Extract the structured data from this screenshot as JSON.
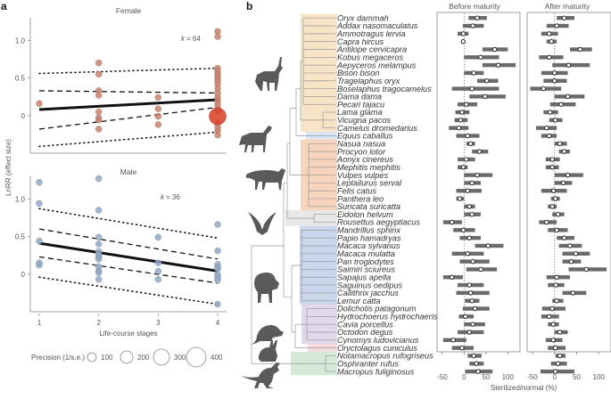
{
  "panel_labels": {
    "a": "a",
    "b": "b"
  },
  "chart_data": [
    {
      "type": "scatter",
      "id": "female",
      "title": "Female",
      "annotation": "k = 64",
      "k_label": "k",
      "k_value": "= 64",
      "xlabel": "Life-course stages",
      "ylabel": "LnRR (effect size)",
      "xlim": [
        0.85,
        4.15
      ],
      "ylim": [
        -0.5,
        1.3
      ],
      "yticks": [
        0,
        0.5,
        1.0
      ],
      "ytick_labels": [
        "0",
        "0.5",
        "1.0"
      ],
      "point_color": "#c9806a",
      "big_point_color": "#d9482f",
      "points": [
        {
          "x": 1,
          "y": 0.16
        },
        {
          "x": 2,
          "y": 0.7
        },
        {
          "x": 2,
          "y": 0.55
        },
        {
          "x": 2,
          "y": 0.33
        },
        {
          "x": 2,
          "y": 0.27
        },
        {
          "x": 2,
          "y": 0.05
        },
        {
          "x": 2,
          "y": -0.03
        },
        {
          "x": 2,
          "y": -0.06
        },
        {
          "x": 2,
          "y": -0.18
        },
        {
          "x": 3,
          "y": 0.24
        },
        {
          "x": 3,
          "y": 0.09
        },
        {
          "x": 3,
          "y": -0.01
        },
        {
          "x": 3,
          "y": -0.12
        },
        {
          "x": 4,
          "y": 1.12
        },
        {
          "x": 4,
          "y": 1.05
        },
        {
          "x": 4,
          "y": 0.63
        },
        {
          "x": 4,
          "y": 0.59
        },
        {
          "x": 4,
          "y": 0.55
        },
        {
          "x": 4,
          "y": 0.51
        },
        {
          "x": 4,
          "y": 0.47
        },
        {
          "x": 4,
          "y": 0.42
        },
        {
          "x": 4,
          "y": 0.36
        },
        {
          "x": 4,
          "y": 0.3
        },
        {
          "x": 4,
          "y": 0.24
        },
        {
          "x": 4,
          "y": 0.2
        },
        {
          "x": 4,
          "y": 0.15
        },
        {
          "x": 4,
          "y": 0.1
        },
        {
          "x": 4,
          "y": 0.06
        },
        {
          "x": 4,
          "y": -0.1
        },
        {
          "x": 4,
          "y": -0.15
        },
        {
          "x": 4,
          "y": -0.2
        },
        {
          "x": 4,
          "y": -0.26
        }
      ],
      "big_point": {
        "x": 4,
        "y": -0.01,
        "precision": 400
      },
      "fit": {
        "start": 0.08,
        "end": 0.21
      },
      "ci": {
        "lower_start": -0.18,
        "lower_end": 0.11,
        "upper_start": 0.33,
        "upper_end": 0.3
      },
      "pi": {
        "lower_start": -0.41,
        "lower_end": -0.22,
        "upper_start": 0.56,
        "upper_end": 0.63
      }
    },
    {
      "type": "scatter",
      "id": "male",
      "title": "Male",
      "annotation": "k = 36",
      "k_label": "k",
      "k_value": "= 36",
      "xlabel": "Life-course stages",
      "ylabel": "LnRR (effect size)",
      "xticks": [
        1,
        2,
        3,
        4
      ],
      "xtick_labels": [
        "1",
        "2",
        "3",
        "4"
      ],
      "xlim": [
        0.85,
        4.15
      ],
      "ylim": [
        -0.5,
        1.3
      ],
      "yticks": [
        0,
        0.5,
        1.0
      ],
      "ytick_labels": [
        "0",
        "0.5",
        "1.0"
      ],
      "point_color": "#8fa8c8",
      "points": [
        {
          "x": 1,
          "y": 1.22
        },
        {
          "x": 1,
          "y": 0.94
        },
        {
          "x": 1,
          "y": 0.44
        },
        {
          "x": 1,
          "y": 0.15
        },
        {
          "x": 1,
          "y": 0.12
        },
        {
          "x": 2,
          "y": 1.27
        },
        {
          "x": 2,
          "y": 0.85
        },
        {
          "x": 2,
          "y": 0.49
        },
        {
          "x": 2,
          "y": 0.4
        },
        {
          "x": 2,
          "y": 0.3
        },
        {
          "x": 2,
          "y": 0.25
        },
        {
          "x": 2,
          "y": 0.22
        },
        {
          "x": 2,
          "y": 0.2
        },
        {
          "x": 2,
          "y": 0.1
        },
        {
          "x": 2,
          "y": 0.04
        },
        {
          "x": 2,
          "y": 0.02
        },
        {
          "x": 2,
          "y": -0.07
        },
        {
          "x": 3,
          "y": 0.49
        },
        {
          "x": 3,
          "y": 0.15
        },
        {
          "x": 3,
          "y": 0.04
        },
        {
          "x": 3,
          "y": -0.07
        },
        {
          "x": 4,
          "y": 0.66
        },
        {
          "x": 4,
          "y": 0.31
        },
        {
          "x": 4,
          "y": 0.13
        },
        {
          "x": 4,
          "y": 0.09
        },
        {
          "x": 4,
          "y": 0.07
        },
        {
          "x": 4,
          "y": -0.01
        },
        {
          "x": 4,
          "y": -0.04
        },
        {
          "x": 4,
          "y": -0.08
        },
        {
          "x": 4,
          "y": -0.4
        }
      ],
      "fit": {
        "start": 0.41,
        "end": 0.04
      },
      "ci": {
        "lower_start": 0.23,
        "lower_end": -0.12,
        "upper_start": 0.6,
        "upper_end": 0.2
      },
      "pi": {
        "lower_start": -0.04,
        "lower_end": -0.4,
        "upper_start": 0.87,
        "upper_end": 0.48
      }
    },
    {
      "type": "forest",
      "id": "maturity",
      "xlabel": "Sterilized/normal (%)",
      "xlim": [
        -62,
        128
      ],
      "xticks": [
        -50,
        0,
        50,
        100
      ],
      "xtick_labels": [
        "-50",
        "0",
        "50",
        "100"
      ],
      "panels": [
        "Before maturity",
        "After maturity"
      ],
      "bar_color": "#6b6b6b",
      "species": [
        {
          "name": "Oryx dammah",
          "before": [
            30,
            10,
            52
          ],
          "after": [
            22,
            5,
            45
          ]
        },
        {
          "name": "Addax nasomaculatus",
          "before": [
            20,
            -3,
            45
          ],
          "after": [
            5,
            -18,
            32
          ]
        },
        {
          "name": "Ammotragus lervia",
          "before": [
            -2,
            -15,
            10
          ],
          "after": [
            -12,
            -30,
            8
          ]
        },
        {
          "name": "Capra hircus",
          "before": [
            -2,
            -6,
            2
          ],
          "after": [
            -7,
            -18,
            5
          ]
        },
        {
          "name": "Antilope cervicapra",
          "before": [
            70,
            42,
            100
          ],
          "after": [
            58,
            35,
            85
          ]
        },
        {
          "name": "Kobus megaceros",
          "before": [
            38,
            0,
            80
          ],
          "after": [
            -12,
            -35,
            20
          ]
        },
        {
          "name": "Aepyceros melampus",
          "before": [
            78,
            42,
            118
          ],
          "after": [
            32,
            -5,
            80
          ]
        },
        {
          "name": "Bison bison",
          "before": [
            22,
            0,
            45
          ],
          "after": [
            0,
            -30,
            30
          ]
        },
        {
          "name": "Tragelaphus oryx",
          "before": [
            52,
            30,
            78
          ],
          "after": [
            0,
            -25,
            28
          ]
        },
        {
          "name": "Boselaphus tragocamelus",
          "before": [
            18,
            -28,
            80
          ],
          "after": [
            -25,
            -55,
            15
          ]
        },
        {
          "name": "Dama dama",
          "before": [
            48,
            12,
            95
          ],
          "after": [
            30,
            0,
            68
          ]
        },
        {
          "name": "Pecari tajacu",
          "before": [
            5,
            -15,
            30
          ],
          "after": [
            15,
            -10,
            48
          ]
        },
        {
          "name": "Lama glama",
          "before": [
            -5,
            -20,
            12
          ],
          "after": [
            -10,
            -25,
            8
          ]
        },
        {
          "name": "Vicugna pacos",
          "before": [
            -8,
            -22,
            8
          ],
          "after": [
            2,
            -12,
            18
          ]
        },
        {
          "name": "Camelus dromedarius",
          "before": [
            -12,
            -35,
            10
          ],
          "after": [
            -18,
            -42,
            5
          ]
        },
        {
          "name": "Equus caballus",
          "before": [
            8,
            -18,
            35
          ],
          "after": [
            -12,
            -30,
            5
          ]
        },
        {
          "name": "Nasua nasua",
          "before": [
            15,
            5,
            25
          ],
          "after": [
            12,
            0,
            28
          ]
        },
        {
          "name": "Procyon lotor",
          "before": [
            35,
            18,
            55
          ],
          "after": [
            22,
            10,
            35
          ]
        },
        {
          "name": "Aonyx cinereus",
          "before": [
            5,
            -15,
            25
          ],
          "after": [
            -5,
            -20,
            12
          ]
        },
        {
          "name": "Mephitis mephitis",
          "before": [
            -2,
            -15,
            8
          ],
          "after": [
            -5,
            -20,
            10
          ]
        },
        {
          "name": "Vulpes vulpes",
          "before": [
            30,
            0,
            65
          ],
          "after": [
            30,
            0,
            65
          ]
        },
        {
          "name": "Leptailurus serval",
          "before": [
            18,
            0,
            38
          ],
          "after": [
            20,
            0,
            40
          ]
        },
        {
          "name": "Felis catus",
          "before": [
            8,
            -18,
            40
          ],
          "after": [
            -2,
            -30,
            28
          ]
        },
        {
          "name": "Panthera leo",
          "before": [
            -10,
            -18,
            0
          ],
          "after": [
            2,
            -8,
            12
          ]
        },
        {
          "name": "Suricata suricatta",
          "before": [
            12,
            0,
            25
          ],
          "after": [
            -5,
            -15,
            5
          ]
        },
        {
          "name": "Eidolon helvum",
          "before": [
            18,
            0,
            38
          ],
          "after": [
            8,
            -5,
            22
          ]
        },
        {
          "name": "Rousettus aegyptiacus",
          "before": [
            -28,
            -48,
            -5
          ],
          "after": [
            -18,
            -35,
            5
          ]
        },
        {
          "name": "Mandrillus sphinx",
          "before": [
            -2,
            -25,
            25
          ],
          "after": [
            5,
            -15,
            30
          ]
        },
        {
          "name": "Papio hamadryas",
          "before": [
            12,
            -10,
            38
          ],
          "after": [
            22,
            5,
            45
          ]
        },
        {
          "name": "Macaca sylvanus",
          "before": [
            55,
            25,
            90
          ],
          "after": [
            35,
            10,
            62
          ]
        },
        {
          "name": "Macaca mulatta",
          "before": [
            8,
            -28,
            45
          ],
          "after": [
            48,
            18,
            80
          ]
        },
        {
          "name": "Pan troglodytes",
          "before": [
            20,
            -10,
            58
          ],
          "after": [
            38,
            18,
            60
          ]
        },
        {
          "name": "Saimiri sciureus",
          "before": [
            38,
            5,
            75
          ],
          "after": [
            72,
            32,
            118
          ]
        },
        {
          "name": "Sapajus apella",
          "before": [
            -28,
            -48,
            -3
          ],
          "after": [
            5,
            -18,
            35
          ]
        },
        {
          "name": "Saguinus oedipus",
          "before": [
            12,
            -15,
            45
          ],
          "after": [
            3,
            -15,
            22
          ]
        },
        {
          "name": "Callithrix jacchus",
          "before": [
            15,
            -18,
            58
          ],
          "after": [
            42,
            18,
            72
          ]
        },
        {
          "name": "Lemur catta",
          "before": [
            18,
            2,
            35
          ],
          "after": [
            5,
            -5,
            20
          ]
        },
        {
          "name": "Dolichotis patagonum",
          "before": [
            25,
            -3,
            58
          ],
          "after": [
            -5,
            -28,
            25
          ]
        },
        {
          "name": "Hydrochoerus hydrochaeris",
          "before": [
            3,
            -12,
            22
          ],
          "after": [
            -12,
            -30,
            10
          ]
        },
        {
          "name": "Cavia porcellus",
          "before": [
            20,
            0,
            48
          ],
          "after": [
            -3,
            -15,
            10
          ]
        },
        {
          "name": "Octodon degus",
          "before": [
            12,
            -15,
            45
          ],
          "after": [
            12,
            0,
            30
          ]
        },
        {
          "name": "Cynomys ludovicianus",
          "before": [
            -25,
            -48,
            5
          ],
          "after": [
            -3,
            -20,
            18
          ]
        },
        {
          "name": "Oryctolagus cuniculus",
          "before": [
            -5,
            -28,
            22
          ],
          "after": [
            2,
            -15,
            25
          ]
        },
        {
          "name": "Notamacropus rufogriseus",
          "before": [
            22,
            8,
            40
          ],
          "after": [
            12,
            2,
            25
          ]
        },
        {
          "name": "Osphranter rufus",
          "before": [
            28,
            12,
            45
          ],
          "after": [
            8,
            -8,
            28
          ]
        },
        {
          "name": "Macropus fuliginosus",
          "before": [
            32,
            2,
            65
          ],
          "after": [
            2,
            -32,
            45
          ]
        }
      ]
    }
  ],
  "legend": {
    "title": "Precision (1/s.e.)",
    "items": [
      {
        "value": 100,
        "label": "100"
      },
      {
        "value": 200,
        "label": "200"
      },
      {
        "value": 300,
        "label": "300"
      },
      {
        "value": 400,
        "label": "400"
      }
    ]
  },
  "clades": [
    {
      "name": "bovids-cervids-camelids",
      "color": "#f7e3c6",
      "from": 0,
      "to": 14,
      "icon": "antelope-icon"
    },
    {
      "name": "equids",
      "color": "#dbe6f3",
      "from": 15,
      "to": 15,
      "icon": "horse-icon"
    },
    {
      "name": "carnivores",
      "color": "#f6d4bd",
      "from": 16,
      "to": 24,
      "icon": "big-cat-icon"
    },
    {
      "name": "bats",
      "color": "#e8e8e8",
      "from": 25,
      "to": 26,
      "icon": "bat-icon"
    },
    {
      "name": "primates",
      "color": "#c9d6ec",
      "from": 27,
      "to": 36,
      "icon": "baboon-icon"
    },
    {
      "name": "rodents",
      "color": "#e2d8ec",
      "from": 37,
      "to": 41,
      "icon": "rodent-icon"
    },
    {
      "name": "lagomorphs",
      "color": "#f6d9df",
      "from": 42,
      "to": 42,
      "icon": "rabbit-icon"
    },
    {
      "name": "marsupials",
      "color": "#d6e9d9",
      "from": 43,
      "to": 45,
      "icon": "kangaroo-icon"
    }
  ]
}
